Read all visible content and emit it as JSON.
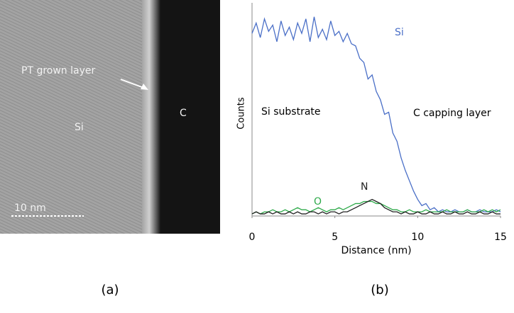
{
  "image_panel": {
    "labels": {
      "layer": "PT grown layer",
      "si": "Si",
      "c": "C",
      "scale": "10  nm"
    }
  },
  "captions": [
    "(a)",
    "(b)"
  ],
  "chart_data": {
    "type": "line",
    "xlabel": "Distance (nm)",
    "ylabel": "Counts",
    "annotations": [
      "Si substrate",
      "C capping layer"
    ],
    "xlim": [
      0,
      15
    ],
    "xticks": [
      0,
      5,
      10,
      15
    ],
    "ylim": [
      0,
      100
    ],
    "x": [
      0,
      0.25,
      0.5,
      0.75,
      1,
      1.25,
      1.5,
      1.75,
      2,
      2.25,
      2.5,
      2.75,
      3,
      3.25,
      3.5,
      3.75,
      4,
      4.25,
      4.5,
      4.75,
      5,
      5.25,
      5.5,
      5.75,
      6,
      6.25,
      6.5,
      6.75,
      7,
      7.25,
      7.5,
      7.75,
      8,
      8.25,
      8.5,
      8.75,
      9,
      9.25,
      9.5,
      9.75,
      10,
      10.25,
      10.5,
      10.75,
      11,
      11.25,
      11.5,
      11.75,
      12,
      12.25,
      12.5,
      12.75,
      13,
      13.25,
      13.5,
      13.75,
      14,
      14.25,
      14.5,
      14.75,
      15
    ],
    "series": [
      {
        "name": "Si",
        "color": "#4a6fc7",
        "values": [
          88,
          93,
          86,
          95,
          89,
          92,
          84,
          94,
          87,
          91,
          85,
          93,
          88,
          95,
          84,
          96,
          86,
          90,
          85,
          94,
          87,
          89,
          84,
          88,
          83,
          82,
          76,
          74,
          66,
          68,
          60,
          56,
          49,
          50,
          40,
          36,
          28,
          22,
          17,
          12,
          8,
          5,
          6,
          3,
          4,
          2,
          3,
          2,
          2,
          3,
          2,
          2,
          3,
          2,
          2,
          3,
          2,
          2,
          2,
          3,
          2
        ]
      },
      {
        "name": "O",
        "color": "#2eaa4a",
        "values": [
          1,
          2,
          1,
          2,
          2,
          3,
          2,
          2,
          3,
          2,
          3,
          4,
          3,
          3,
          2,
          3,
          4,
          3,
          2,
          3,
          3,
          4,
          3,
          4,
          5,
          6,
          6,
          7,
          7,
          7,
          6,
          6,
          5,
          4,
          3,
          3,
          2,
          2,
          3,
          2,
          2,
          2,
          3,
          2,
          2,
          2,
          2,
          3,
          2,
          2,
          2,
          2,
          3,
          2,
          2,
          2,
          3,
          2,
          3,
          2,
          3
        ]
      },
      {
        "name": "N",
        "color": "#222222",
        "values": [
          1,
          2,
          1,
          1,
          2,
          1,
          2,
          1,
          1,
          2,
          1,
          2,
          1,
          1,
          2,
          2,
          1,
          2,
          1,
          2,
          2,
          1,
          2,
          2,
          3,
          4,
          5,
          6,
          7,
          8,
          7,
          6,
          4,
          3,
          2,
          2,
          1,
          2,
          1,
          1,
          2,
          1,
          1,
          2,
          1,
          1,
          2,
          1,
          1,
          2,
          1,
          1,
          2,
          1,
          1,
          2,
          1,
          1,
          2,
          1,
          1
        ]
      }
    ]
  }
}
